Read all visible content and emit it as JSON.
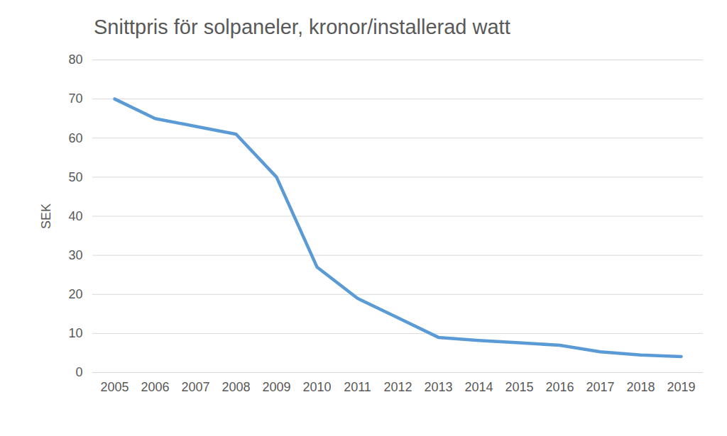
{
  "chart_data": {
    "type": "line",
    "title": "Snittpris för solpaneler, kronor/installerad watt",
    "y_label": "SEK",
    "categories": [
      "2005",
      "2006",
      "2007",
      "2008",
      "2009",
      "2010",
      "2011",
      "2012",
      "2013",
      "2014",
      "2015",
      "2016",
      "2017",
      "2018",
      "2019"
    ],
    "values": [
      70,
      65,
      63,
      61,
      50,
      27,
      19,
      14,
      9,
      8.2,
      7.6,
      7,
      5.3,
      4.5,
      4.1
    ],
    "color": "#5b9bd5",
    "ylim": [
      0,
      80
    ],
    "yticks": [
      0,
      10,
      20,
      30,
      40,
      50,
      60,
      70,
      80
    ],
    "grid": true
  }
}
